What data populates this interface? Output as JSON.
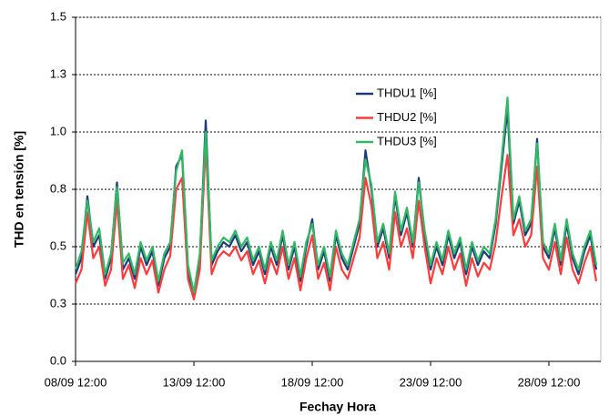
{
  "chart_data": {
    "type": "line",
    "y_label": "THD en tensión [%]",
    "x_label": "Fechay Hora",
    "categories": [
      "08/09 12:00",
      null,
      null,
      null,
      null,
      null,
      null,
      null,
      null,
      null,
      null,
      null,
      null,
      null,
      null,
      null,
      null,
      null,
      null,
      null,
      "13/09 12:00",
      null,
      null,
      null,
      null,
      null,
      null,
      null,
      null,
      null,
      null,
      null,
      null,
      null,
      null,
      null,
      null,
      null,
      null,
      null,
      "18/09 12:00",
      null,
      null,
      null,
      null,
      null,
      null,
      null,
      null,
      null,
      null,
      null,
      null,
      null,
      null,
      null,
      null,
      null,
      null,
      null,
      "23/09 12:00",
      null,
      null,
      null,
      null,
      null,
      null,
      null,
      null,
      null,
      null,
      null,
      null,
      null,
      null,
      null,
      null,
      null,
      null,
      null,
      "28/09 12:00",
      null,
      null,
      null,
      null,
      null,
      null,
      null,
      null
    ],
    "series": [
      {
        "name": "THDU1 [%]",
        "color": "#1f3a78",
        "values": [
          0.38,
          0.45,
          0.72,
          0.5,
          0.55,
          0.36,
          0.45,
          0.78,
          0.4,
          0.45,
          0.36,
          0.5,
          0.42,
          0.48,
          0.33,
          0.45,
          0.5,
          0.85,
          0.9,
          0.4,
          0.28,
          0.45,
          1.05,
          0.42,
          0.48,
          0.52,
          0.5,
          0.55,
          0.48,
          0.52,
          0.42,
          0.48,
          0.38,
          0.5,
          0.42,
          0.55,
          0.4,
          0.5,
          0.35,
          0.5,
          0.62,
          0.4,
          0.48,
          0.35,
          0.55,
          0.45,
          0.4,
          0.5,
          0.6,
          0.92,
          0.75,
          0.5,
          0.58,
          0.45,
          0.72,
          0.55,
          0.65,
          0.5,
          0.8,
          0.55,
          0.4,
          0.5,
          0.42,
          0.55,
          0.45,
          0.52,
          0.38,
          0.5,
          0.42,
          0.48,
          0.45,
          0.6,
          0.85,
          1.1,
          0.6,
          0.7,
          0.55,
          0.6,
          0.97,
          0.5,
          0.45,
          0.58,
          0.42,
          0.6,
          0.45,
          0.38,
          0.48,
          0.55,
          0.4
        ]
      },
      {
        "name": "THDU2 [%]",
        "color": "#ff3b3b",
        "values": [
          0.34,
          0.4,
          0.65,
          0.45,
          0.5,
          0.33,
          0.4,
          0.7,
          0.36,
          0.42,
          0.32,
          0.45,
          0.38,
          0.44,
          0.3,
          0.4,
          0.46,
          0.75,
          0.8,
          0.36,
          0.27,
          0.4,
          0.95,
          0.38,
          0.45,
          0.48,
          0.46,
          0.5,
          0.44,
          0.48,
          0.38,
          0.44,
          0.34,
          0.45,
          0.38,
          0.5,
          0.36,
          0.45,
          0.31,
          0.45,
          0.55,
          0.36,
          0.43,
          0.31,
          0.5,
          0.4,
          0.36,
          0.45,
          0.54,
          0.8,
          0.68,
          0.45,
          0.52,
          0.4,
          0.65,
          0.5,
          0.58,
          0.45,
          0.7,
          0.5,
          0.34,
          0.45,
          0.38,
          0.5,
          0.4,
          0.47,
          0.33,
          0.45,
          0.37,
          0.43,
          0.4,
          0.52,
          0.72,
          0.9,
          0.55,
          0.62,
          0.5,
          0.55,
          0.85,
          0.45,
          0.4,
          0.52,
          0.38,
          0.54,
          0.4,
          0.34,
          0.43,
          0.5,
          0.35
        ]
      },
      {
        "name": "THDU3 [%]",
        "color": "#2fb865",
        "values": [
          0.4,
          0.48,
          0.7,
          0.52,
          0.58,
          0.38,
          0.47,
          0.76,
          0.43,
          0.47,
          0.38,
          0.52,
          0.44,
          0.5,
          0.35,
          0.47,
          0.52,
          0.83,
          0.92,
          0.42,
          0.3,
          0.47,
          1.0,
          0.44,
          0.5,
          0.54,
          0.52,
          0.57,
          0.5,
          0.54,
          0.44,
          0.5,
          0.4,
          0.52,
          0.44,
          0.57,
          0.42,
          0.52,
          0.37,
          0.52,
          0.6,
          0.42,
          0.5,
          0.37,
          0.57,
          0.47,
          0.42,
          0.52,
          0.62,
          0.88,
          0.77,
          0.52,
          0.6,
          0.47,
          0.74,
          0.57,
          0.67,
          0.52,
          0.78,
          0.57,
          0.42,
          0.52,
          0.44,
          0.57,
          0.47,
          0.54,
          0.4,
          0.52,
          0.44,
          0.5,
          0.47,
          0.62,
          0.88,
          1.15,
          0.62,
          0.72,
          0.57,
          0.62,
          0.95,
          0.52,
          0.47,
          0.6,
          0.44,
          0.62,
          0.47,
          0.4,
          0.5,
          0.57,
          0.42
        ]
      }
    ],
    "ylim": [
      0,
      1.5
    ],
    "yticks": [
      {
        "value": 0,
        "label": "0.0"
      },
      {
        "value": 0.25,
        "label": "0.3"
      },
      {
        "value": 0.5,
        "label": "0.5"
      },
      {
        "value": 0.75,
        "label": "0.8"
      },
      {
        "value": 1,
        "label": "1.0"
      },
      {
        "value": 1.25,
        "label": "1.3"
      },
      {
        "value": 1.5,
        "label": "1.5"
      }
    ],
    "grid": true
  }
}
